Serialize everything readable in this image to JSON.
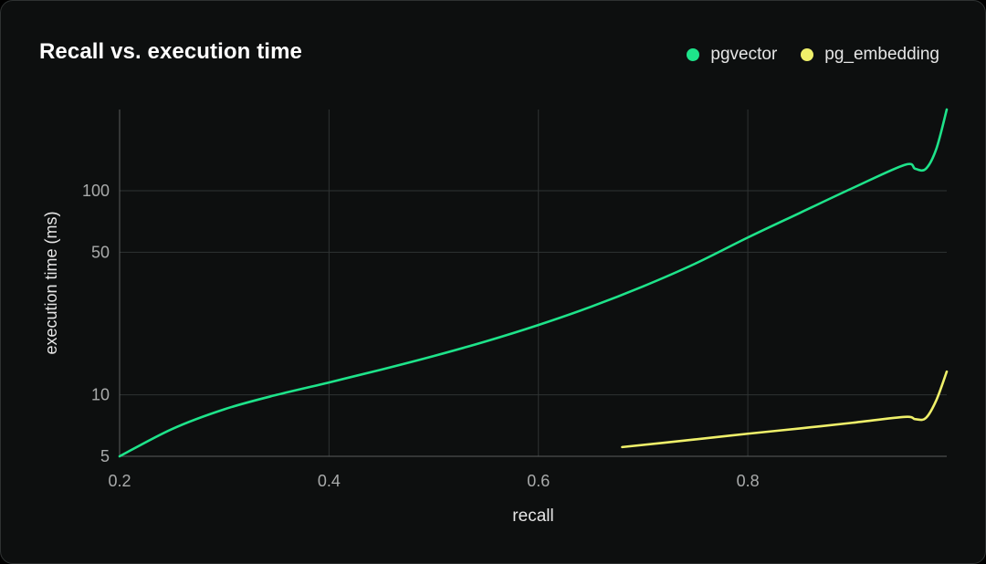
{
  "chart_data": {
    "type": "line",
    "title": "Recall vs. execution time",
    "xlabel": "recall",
    "ylabel": "execution time (ms)",
    "xlim": [
      0.2,
      0.99
    ],
    "ylim": [
      5,
      250
    ],
    "y_scale": "log",
    "x_ticks": [
      {
        "value": 0.2,
        "label": "0.2"
      },
      {
        "value": 0.4,
        "label": "0.4"
      },
      {
        "value": 0.6,
        "label": "0.6"
      },
      {
        "value": 0.8,
        "label": "0.8"
      }
    ],
    "y_ticks": [
      {
        "value": 5,
        "label": "5"
      },
      {
        "value": 10,
        "label": "10"
      },
      {
        "value": 50,
        "label": "50"
      },
      {
        "value": 100,
        "label": "100"
      }
    ],
    "grid": true,
    "legend_position": "top-right",
    "series": [
      {
        "name": "pgvector",
        "color": "#1ee38a",
        "x": [
          0.2,
          0.25,
          0.3,
          0.35,
          0.4,
          0.45,
          0.5,
          0.55,
          0.6,
          0.65,
          0.7,
          0.75,
          0.8,
          0.85,
          0.9,
          0.95,
          0.96,
          0.97,
          0.98,
          0.99
        ],
        "y": [
          5,
          6.8,
          8.5,
          10,
          11.5,
          13.3,
          15.5,
          18.3,
          22,
          27,
          34,
          44,
          59,
          78,
          103,
          134,
          128,
          128,
          160,
          250
        ]
      },
      {
        "name": "pg_embedding",
        "color": "#eff06a",
        "x": [
          0.68,
          0.75,
          0.8,
          0.85,
          0.9,
          0.95,
          0.96,
          0.97,
          0.98,
          0.99
        ],
        "y": [
          5.55,
          6.05,
          6.45,
          6.85,
          7.3,
          7.8,
          7.6,
          7.7,
          9.4,
          13
        ]
      }
    ]
  }
}
